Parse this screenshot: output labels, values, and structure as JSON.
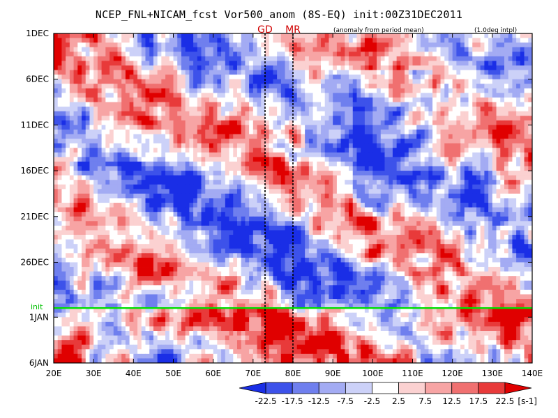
{
  "title": "NCEP_FNL+NICAM_fcst Vor500_anom (8S-EQ) init:00Z31DEC2011",
  "notes": {
    "anomaly": "(anomaly from period mean)",
    "interp": "(1.0deg intpl)"
  },
  "markers": {
    "gd": "GD",
    "mr": "MR",
    "init": "init"
  },
  "chart_data": {
    "type": "heatmap",
    "title": "NCEP_FNL+NICAM_fcst Vor500_anom (8S-EQ) init:00Z31DEC2011",
    "xlabel": "",
    "ylabel": "",
    "x_ticks": [
      "20E",
      "30E",
      "40E",
      "50E",
      "60E",
      "70E",
      "80E",
      "90E",
      "100E",
      "110E",
      "120E",
      "130E",
      "140E"
    ],
    "y_ticks": [
      "1DEC",
      "6DEC",
      "11DEC",
      "16DEC",
      "21DEC",
      "26DEC",
      "1JAN",
      "6JAN"
    ],
    "xlim": [
      20,
      140
    ],
    "ylim_days": [
      "2011-12-01",
      "2012-01-06"
    ],
    "init_line": "2011-12-31",
    "vertical_markers": [
      {
        "label": "GD",
        "lon": 73
      },
      {
        "label": "MR",
        "lon": 80
      }
    ],
    "colorbar": {
      "labels": [
        "-22.5",
        "-17.5",
        "-12.5",
        "-7.5",
        "-2.5",
        "2.5",
        "7.5",
        "12.5",
        "17.5",
        "22.5"
      ],
      "unit": "[s-1]",
      "colors": [
        "#1a2ee6",
        "#3d52ea",
        "#6f7fee",
        "#a3abf3",
        "#ccd1f8",
        "#ffffff",
        "#fbd1d1",
        "#f7a4a4",
        "#f07070",
        "#e83a3a",
        "#e00000"
      ]
    }
  }
}
